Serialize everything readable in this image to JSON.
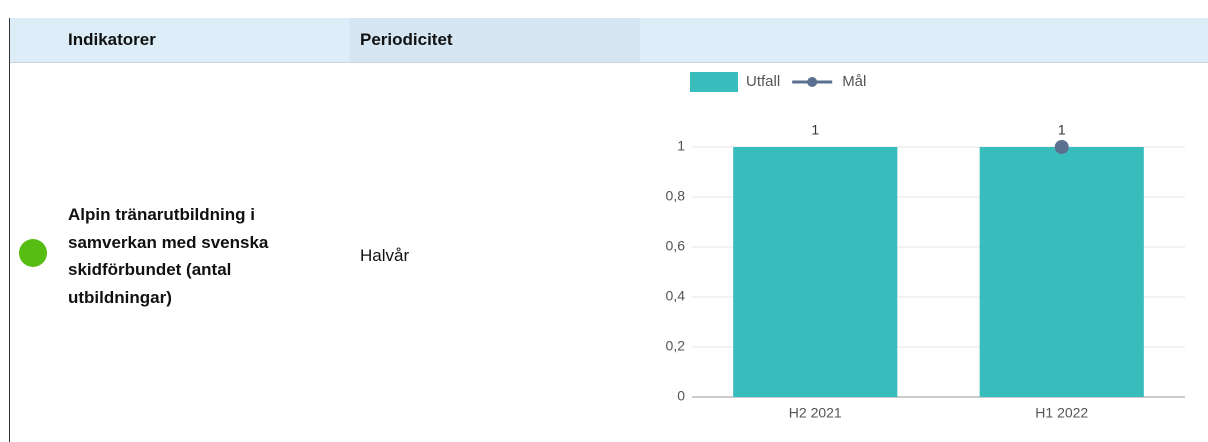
{
  "table": {
    "header": [
      "Indikatorer",
      "Periodicitet"
    ],
    "rows": [
      {
        "indicator": "Alpin tränarutbildning i samverkan med svenska skidförbundet (antal utbildningar)",
        "status_color": "#57bd12",
        "period": "Halvår"
      }
    ]
  },
  "chart_data": {
    "type": "bar",
    "categories": [
      "H2 2021",
      "H1 2022"
    ],
    "series": [
      {
        "name": "Utfall",
        "color": "#38bcbc",
        "values": [
          1,
          1
        ],
        "value_labels": [
          "1",
          "1"
        ]
      },
      {
        "name": "Mål",
        "color": "#5b6f8e",
        "type": "line",
        "values": [
          null,
          1
        ]
      }
    ],
    "ylim": [
      0,
      1
    ],
    "yticks": [
      0,
      {
        "value": 0.2,
        "label": "0,2"
      },
      {
        "value": 0.4,
        "label": "0,4"
      },
      {
        "value": 0.6,
        "label": "0,6"
      },
      {
        "value": 0.8,
        "label": "0,8"
      },
      1
    ],
    "grid": true,
    "legend": "top"
  }
}
